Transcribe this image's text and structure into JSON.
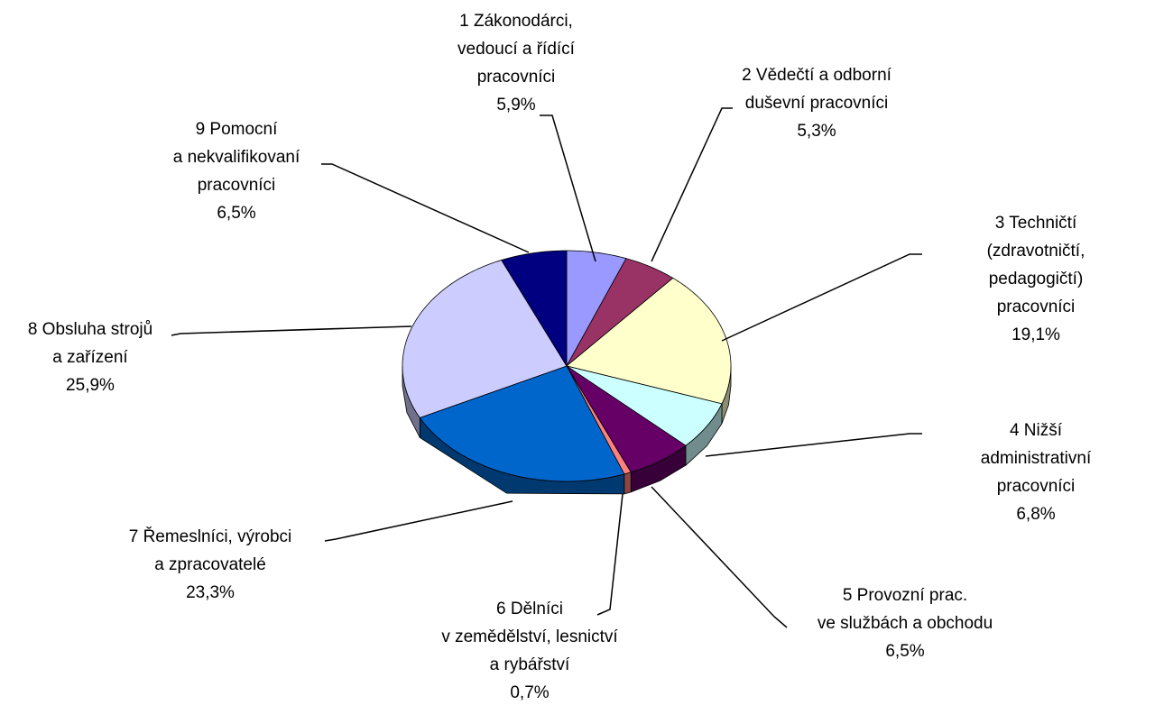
{
  "chart_data": {
    "type": "pie",
    "categories": [
      "1 Zákonodárci,\nvedoucí a řídící\npracovníci",
      "2 Vědečtí a odborní\nduševní pracovníci",
      "3 Techničtí\n(zdravotničtí,\npedagogičtí) pracovníci",
      "4 Nižší administrativní\npracovníci",
      "5 Provozní prac.\nve službách a obchodu",
      "6 Dělníci\nv zemědělství, lesnictví\na rybářství",
      "7 Řemeslníci, výrobci\na zpracovatelé",
      "8 Obsluha strojů\na zařízení",
      "9 Pomocní\na nekvalifikovaní\npracovníci"
    ],
    "values": [
      5.9,
      5.3,
      19.1,
      6.8,
      6.5,
      0.7,
      23.3,
      25.9,
      6.5
    ],
    "value_labels": [
      "5,9%",
      "5,3%",
      "19,1%",
      "6,8%",
      "6,5%",
      "0,7%",
      "23,3%",
      "25,9%",
      "6,5%"
    ],
    "colors": [
      "#9999ff",
      "#993366",
      "#ffffcc",
      "#ccffff",
      "#660066",
      "#ff8080",
      "#0066cc",
      "#ccccff",
      "#000080"
    ]
  }
}
